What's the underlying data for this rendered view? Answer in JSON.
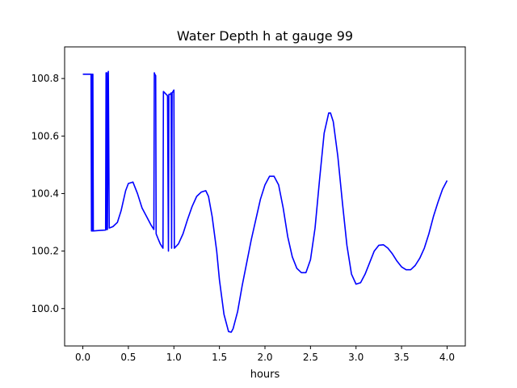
{
  "chart_data": {
    "type": "line",
    "title": "Water Depth h at gauge 99",
    "xlabel": "hours",
    "ylabel": "",
    "xlim": [
      -0.2,
      4.2
    ],
    "ylim": [
      99.87,
      100.91
    ],
    "x_ticks": [
      0.0,
      0.5,
      1.0,
      1.5,
      2.0,
      2.5,
      3.0,
      3.5,
      4.0
    ],
    "x_tick_labels": [
      "0.0",
      "0.5",
      "1.0",
      "1.5",
      "2.0",
      "2.5",
      "3.0",
      "3.5",
      "4.0"
    ],
    "y_ticks": [
      100.0,
      100.2,
      100.4,
      100.6,
      100.8
    ],
    "y_tick_labels": [
      "100.0",
      "100.2",
      "100.4",
      "100.6",
      "100.8"
    ],
    "grid": false,
    "series": [
      {
        "color": "#0000ff",
        "points": [
          [
            0.0,
            100.815
          ],
          [
            0.09,
            100.815
          ],
          [
            0.095,
            100.27
          ],
          [
            0.1,
            100.815
          ],
          [
            0.105,
            100.27
          ],
          [
            0.11,
            100.815
          ],
          [
            0.115,
            100.27
          ],
          [
            0.2,
            100.272
          ],
          [
            0.25,
            100.273
          ],
          [
            0.255,
            100.82
          ],
          [
            0.26,
            100.275
          ],
          [
            0.265,
            100.82
          ],
          [
            0.27,
            100.275
          ],
          [
            0.28,
            100.825
          ],
          [
            0.29,
            100.28
          ],
          [
            0.33,
            100.285
          ],
          [
            0.38,
            100.3
          ],
          [
            0.42,
            100.34
          ],
          [
            0.47,
            100.41
          ],
          [
            0.5,
            100.435
          ],
          [
            0.55,
            100.44
          ],
          [
            0.6,
            100.4
          ],
          [
            0.65,
            100.35
          ],
          [
            0.7,
            100.32
          ],
          [
            0.75,
            100.29
          ],
          [
            0.78,
            100.275
          ],
          [
            0.785,
            100.82
          ],
          [
            0.79,
            100.815
          ],
          [
            0.8,
            100.81
          ],
          [
            0.805,
            100.26
          ],
          [
            0.83,
            100.24
          ],
          [
            0.85,
            100.225
          ],
          [
            0.88,
            100.21
          ],
          [
            0.885,
            100.755
          ],
          [
            0.9,
            100.75
          ],
          [
            0.93,
            100.74
          ],
          [
            0.94,
            100.2
          ],
          [
            0.945,
            100.745
          ],
          [
            0.96,
            100.745
          ],
          [
            0.97,
            100.75
          ],
          [
            0.975,
            100.21
          ],
          [
            0.98,
            100.75
          ],
          [
            0.99,
            100.755
          ],
          [
            1.0,
            100.76
          ],
          [
            1.005,
            100.21
          ],
          [
            1.05,
            100.225
          ],
          [
            1.1,
            100.26
          ],
          [
            1.15,
            100.31
          ],
          [
            1.2,
            100.355
          ],
          [
            1.25,
            100.39
          ],
          [
            1.3,
            100.405
          ],
          [
            1.35,
            100.41
          ],
          [
            1.38,
            100.39
          ],
          [
            1.42,
            100.32
          ],
          [
            1.47,
            100.2
          ],
          [
            1.5,
            100.1
          ],
          [
            1.55,
            99.98
          ],
          [
            1.6,
            99.92
          ],
          [
            1.63,
            99.918
          ],
          [
            1.65,
            99.93
          ],
          [
            1.7,
            99.99
          ],
          [
            1.75,
            100.08
          ],
          [
            1.8,
            100.16
          ],
          [
            1.85,
            100.24
          ],
          [
            1.9,
            100.31
          ],
          [
            1.95,
            100.38
          ],
          [
            2.0,
            100.43
          ],
          [
            2.05,
            100.46
          ],
          [
            2.1,
            100.46
          ],
          [
            2.15,
            100.43
          ],
          [
            2.2,
            100.35
          ],
          [
            2.25,
            100.25
          ],
          [
            2.3,
            100.18
          ],
          [
            2.35,
            100.14
          ],
          [
            2.4,
            100.125
          ],
          [
            2.45,
            100.125
          ],
          [
            2.5,
            100.17
          ],
          [
            2.55,
            100.28
          ],
          [
            2.6,
            100.45
          ],
          [
            2.65,
            100.61
          ],
          [
            2.7,
            100.68
          ],
          [
            2.72,
            100.68
          ],
          [
            2.75,
            100.65
          ],
          [
            2.8,
            100.53
          ],
          [
            2.85,
            100.37
          ],
          [
            2.9,
            100.22
          ],
          [
            2.95,
            100.12
          ],
          [
            3.0,
            100.085
          ],
          [
            3.05,
            100.09
          ],
          [
            3.1,
            100.12
          ],
          [
            3.15,
            100.16
          ],
          [
            3.2,
            100.2
          ],
          [
            3.25,
            100.22
          ],
          [
            3.3,
            100.222
          ],
          [
            3.35,
            100.21
          ],
          [
            3.4,
            100.19
          ],
          [
            3.45,
            100.165
          ],
          [
            3.5,
            100.145
          ],
          [
            3.55,
            100.135
          ],
          [
            3.6,
            100.135
          ],
          [
            3.65,
            100.15
          ],
          [
            3.7,
            100.175
          ],
          [
            3.75,
            100.21
          ],
          [
            3.8,
            100.26
          ],
          [
            3.85,
            100.32
          ],
          [
            3.9,
            100.37
          ],
          [
            3.95,
            100.415
          ],
          [
            4.0,
            100.445
          ]
        ]
      }
    ]
  }
}
